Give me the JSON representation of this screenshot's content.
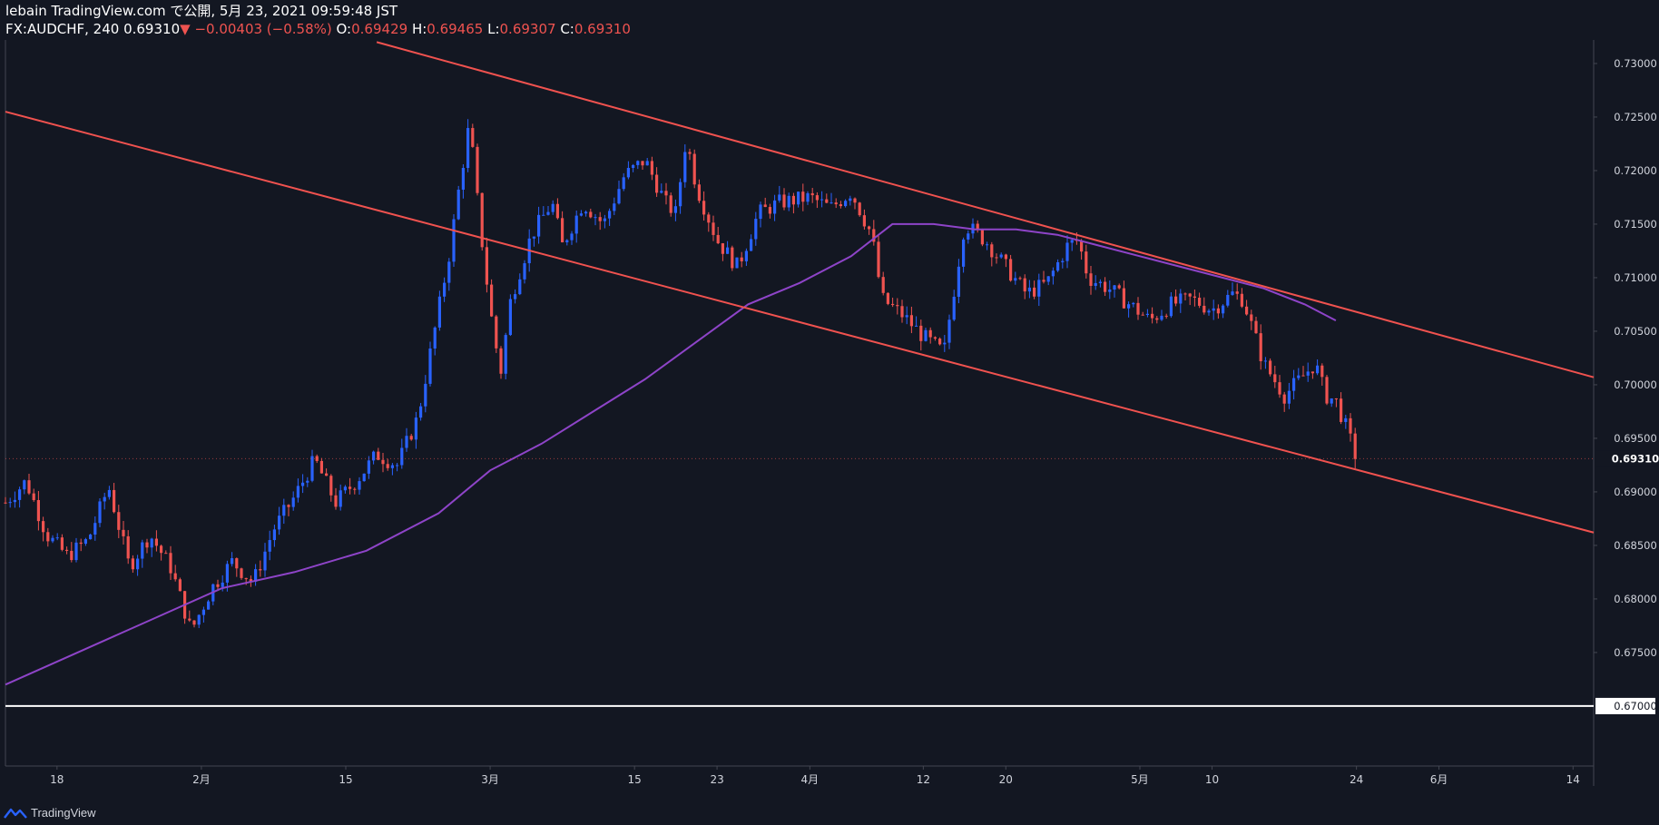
{
  "header": {
    "line1": "lebain TradingView.com で公開, 5月 23, 2021 09:59:48 JST",
    "symbol": "FX:AUDCHF, 240",
    "last": "0.69310",
    "arrow": "▼",
    "change": "−0.00403 (−0.58%)",
    "o_label": "O:",
    "o_value": "0.69429",
    "h_label": "H:",
    "h_value": "0.69465",
    "l_label": "L:",
    "l_value": "0.69307",
    "c_label": "C:",
    "c_value": "0.69310"
  },
  "footer": {
    "brand": "TradingView",
    "logo_icon": "tradingview-logo-icon"
  },
  "colors": {
    "background": "#131722",
    "up": "#2962ff",
    "down": "#ef5350",
    "trendline": "#f0524f",
    "ma": "#8e44c8",
    "horizontal": "#ffffff",
    "axis_text": "#d1d4dc"
  },
  "chart_data": {
    "type": "candlestick",
    "symbol": "FX:AUDCHF",
    "interval": "240",
    "y_axis": {
      "range": [
        0.6644,
        0.7322
      ],
      "ticks": [
        "0.73000",
        "0.72500",
        "0.72000",
        "0.71500",
        "0.71000",
        "0.70500",
        "0.70000",
        "0.69500",
        "0.69000",
        "0.68500",
        "0.68000",
        "0.67500",
        "0.67000"
      ],
      "current_price_label": "0.69310"
    },
    "x_axis": {
      "ticks": [
        {
          "label": "18",
          "date": "2021-01-18"
        },
        {
          "label": "2月",
          "date": "2021-02-01"
        },
        {
          "label": "15",
          "date": "2021-02-15"
        },
        {
          "label": "3月",
          "date": "2021-03-01"
        },
        {
          "label": "15",
          "date": "2021-03-15"
        },
        {
          "label": "23",
          "date": "2021-03-23"
        },
        {
          "label": "4月",
          "date": "2021-04-01"
        },
        {
          "label": "12",
          "date": "2021-04-12"
        },
        {
          "label": "20",
          "date": "2021-04-20"
        },
        {
          "label": "5月",
          "date": "2021-05-03"
        },
        {
          "label": "10",
          "date": "2021-05-10"
        },
        {
          "label": "24",
          "date": "2021-05-24"
        },
        {
          "label": "6月",
          "date": "2021-06-01"
        },
        {
          "label": "14",
          "date": "2021-06-14"
        }
      ]
    },
    "price_path": [
      [
        "2021-01-13",
        0.689
      ],
      [
        "2021-01-15",
        0.691
      ],
      [
        "2021-01-17",
        0.686
      ],
      [
        "2021-01-19",
        0.684
      ],
      [
        "2021-01-21",
        0.6855
      ],
      [
        "2021-01-23",
        0.6905
      ],
      [
        "2021-01-25",
        0.683
      ],
      [
        "2021-01-27",
        0.686
      ],
      [
        "2021-01-29",
        0.683
      ],
      [
        "2021-01-31",
        0.677
      ],
      [
        "2021-02-02",
        0.681
      ],
      [
        "2021-02-04",
        0.6835
      ],
      [
        "2021-02-06",
        0.6815
      ],
      [
        "2021-02-08",
        0.6865
      ],
      [
        "2021-02-10",
        0.6895
      ],
      [
        "2021-02-12",
        0.693
      ],
      [
        "2021-02-14",
        0.689
      ],
      [
        "2021-02-16",
        0.691
      ],
      [
        "2021-02-18",
        0.6935
      ],
      [
        "2021-02-20",
        0.6925
      ],
      [
        "2021-02-22",
        0.697
      ],
      [
        "2021-02-24",
        0.707
      ],
      [
        "2021-02-25",
        0.712
      ],
      [
        "2021-02-26",
        0.7185
      ],
      [
        "2021-02-27",
        0.7245
      ],
      [
        "2021-02-28",
        0.715
      ],
      [
        "2021-03-01",
        0.707
      ],
      [
        "2021-03-02",
        0.701
      ],
      [
        "2021-03-03",
        0.708
      ],
      [
        "2021-03-05",
        0.714
      ],
      [
        "2021-03-07",
        0.717
      ],
      [
        "2021-03-08",
        0.713
      ],
      [
        "2021-03-10",
        0.717
      ],
      [
        "2021-03-12",
        0.715
      ],
      [
        "2021-03-14",
        0.7195
      ],
      [
        "2021-03-16",
        0.721
      ],
      [
        "2021-03-18",
        0.717
      ],
      [
        "2021-03-19",
        0.716
      ],
      [
        "2021-03-20",
        0.723
      ],
      [
        "2021-03-21",
        0.7185
      ],
      [
        "2021-03-23",
        0.7135
      ],
      [
        "2021-03-25",
        0.711
      ],
      [
        "2021-03-27",
        0.716
      ],
      [
        "2021-03-29",
        0.717
      ],
      [
        "2021-04-01",
        0.7175
      ],
      [
        "2021-04-03",
        0.7165
      ],
      [
        "2021-04-05",
        0.718
      ],
      [
        "2021-04-07",
        0.714
      ],
      [
        "2021-04-08",
        0.708
      ],
      [
        "2021-04-10",
        0.7065
      ],
      [
        "2021-04-12",
        0.7045
      ],
      [
        "2021-04-14",
        0.703
      ],
      [
        "2021-04-16",
        0.715
      ],
      [
        "2021-04-18",
        0.7135
      ],
      [
        "2021-04-20",
        0.711
      ],
      [
        "2021-04-22",
        0.7085
      ],
      [
        "2021-04-24",
        0.7095
      ],
      [
        "2021-04-26",
        0.713
      ],
      [
        "2021-04-27",
        0.7135
      ],
      [
        "2021-04-28",
        0.71
      ],
      [
        "2021-04-30",
        0.709
      ],
      [
        "2021-05-02",
        0.7075
      ],
      [
        "2021-05-04",
        0.706
      ],
      [
        "2021-05-06",
        0.7075
      ],
      [
        "2021-05-08",
        0.708
      ],
      [
        "2021-05-10",
        0.707
      ],
      [
        "2021-05-12",
        0.7085
      ],
      [
        "2021-05-13",
        0.708
      ],
      [
        "2021-05-15",
        0.702
      ],
      [
        "2021-05-17",
        0.699
      ],
      [
        "2021-05-19",
        0.701
      ],
      [
        "2021-05-20",
        0.702
      ],
      [
        "2021-05-21",
        0.699
      ],
      [
        "2021-05-22",
        0.6985
      ],
      [
        "2021-05-23",
        0.696
      ],
      [
        "2021-05-24",
        0.6931
      ]
    ],
    "moving_average": [
      [
        "2021-01-13",
        0.672
      ],
      [
        "2021-01-20",
        0.675
      ],
      [
        "2021-01-27",
        0.678
      ],
      [
        "2021-02-03",
        0.681
      ],
      [
        "2021-02-10",
        0.6825
      ],
      [
        "2021-02-17",
        0.6845
      ],
      [
        "2021-02-24",
        0.688
      ],
      [
        "2021-03-01",
        0.692
      ],
      [
        "2021-03-06",
        0.6945
      ],
      [
        "2021-03-11",
        0.6975
      ],
      [
        "2021-03-16",
        0.7005
      ],
      [
        "2021-03-21",
        0.704
      ],
      [
        "2021-03-26",
        0.7075
      ],
      [
        "2021-03-31",
        0.7095
      ],
      [
        "2021-04-05",
        0.712
      ],
      [
        "2021-04-09",
        0.715
      ],
      [
        "2021-04-13",
        0.715
      ],
      [
        "2021-04-17",
        0.7145
      ],
      [
        "2021-04-21",
        0.7145
      ],
      [
        "2021-04-25",
        0.714
      ],
      [
        "2021-04-29",
        0.713
      ],
      [
        "2021-05-03",
        0.712
      ],
      [
        "2021-05-07",
        0.711
      ],
      [
        "2021-05-11",
        0.71
      ],
      [
        "2021-05-15",
        0.709
      ],
      [
        "2021-05-19",
        0.7075
      ],
      [
        "2021-05-22",
        0.706
      ]
    ],
    "trendlines": [
      {
        "from": [
          "2021-02-18",
          0.732
        ],
        "to": [
          "2021-06-16",
          0.7007
        ]
      },
      {
        "from": [
          "2021-01-13",
          0.7255
        ],
        "to": [
          "2021-06-16",
          0.6862
        ]
      }
    ],
    "horizontal_line": {
      "price": 0.67,
      "label": "0.67000"
    },
    "grid": false,
    "legend": "none"
  }
}
